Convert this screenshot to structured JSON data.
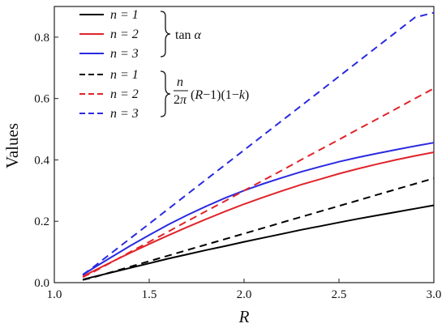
{
  "chart_data": {
    "type": "line",
    "xlabel": "R",
    "ylabel": "Values",
    "xlim": [
      1.0,
      3.0
    ],
    "ylim": [
      0.0,
      0.9
    ],
    "xticks": [
      "1.0",
      "1.5",
      "2.0",
      "2.5",
      "3.0"
    ],
    "yticks": [
      "0.0",
      "0.2",
      "0.4",
      "0.6",
      "0.8"
    ],
    "grid": false,
    "legend_position": "top-left",
    "legend_groups": [
      {
        "label": "tan α",
        "series": [
          0,
          1,
          2
        ]
      },
      {
        "label": "n/2π (R−1)(1−k)",
        "series": [
          3,
          4,
          5
        ]
      }
    ],
    "x": [
      1.15,
      1.2,
      1.3,
      1.4,
      1.5,
      1.6,
      1.7,
      1.8,
      1.9,
      2.0,
      2.1,
      2.2,
      2.3,
      2.4,
      2.5,
      2.6,
      2.7,
      2.8,
      2.9,
      3.0
    ],
    "series": [
      {
        "name": "n = 1",
        "color": "#000000",
        "dash": "solid",
        "values": [
          0.01,
          0.018,
          0.033,
          0.048,
          0.063,
          0.078,
          0.092,
          0.106,
          0.119,
          0.133,
          0.146,
          0.159,
          0.172,
          0.184,
          0.196,
          0.208,
          0.219,
          0.23,
          0.241,
          0.252
        ]
      },
      {
        "name": "n = 2",
        "color": "#e0242a",
        "dash": "solid",
        "values": [
          0.02,
          0.036,
          0.067,
          0.097,
          0.126,
          0.154,
          0.181,
          0.207,
          0.232,
          0.256,
          0.278,
          0.299,
          0.319,
          0.337,
          0.355,
          0.371,
          0.386,
          0.4,
          0.413,
          0.425
        ]
      },
      {
        "name": "n = 3",
        "color": "#2a2ae0",
        "dash": "solid",
        "values": [
          0.025,
          0.045,
          0.083,
          0.12,
          0.155,
          0.189,
          0.22,
          0.249,
          0.276,
          0.3,
          0.322,
          0.342,
          0.361,
          0.378,
          0.394,
          0.408,
          0.421,
          0.433,
          0.445,
          0.456
        ]
      },
      {
        "name": "n = 1",
        "color": "#000000",
        "dash": "dashed",
        "values": [
          0.009,
          0.016,
          0.034,
          0.052,
          0.07,
          0.088,
          0.106,
          0.124,
          0.142,
          0.16,
          0.178,
          0.196,
          0.214,
          0.232,
          0.25,
          0.268,
          0.286,
          0.304,
          0.322,
          0.34
        ]
      },
      {
        "name": "n = 2",
        "color": "#e0242a",
        "dash": "dashed",
        "values": [
          0.018,
          0.033,
          0.066,
          0.1,
          0.133,
          0.166,
          0.2,
          0.233,
          0.266,
          0.3,
          0.333,
          0.366,
          0.4,
          0.433,
          0.466,
          0.5,
          0.533,
          0.566,
          0.6,
          0.633
        ]
      },
      {
        "name": "n = 3",
        "color": "#2a2ae0",
        "dash": "dashed",
        "values": [
          0.026,
          0.048,
          0.096,
          0.144,
          0.192,
          0.24,
          0.288,
          0.336,
          0.384,
          0.432,
          0.48,
          0.528,
          0.576,
          0.624,
          0.672,
          0.72,
          0.768,
          0.816,
          0.864,
          0.88
        ]
      }
    ]
  }
}
